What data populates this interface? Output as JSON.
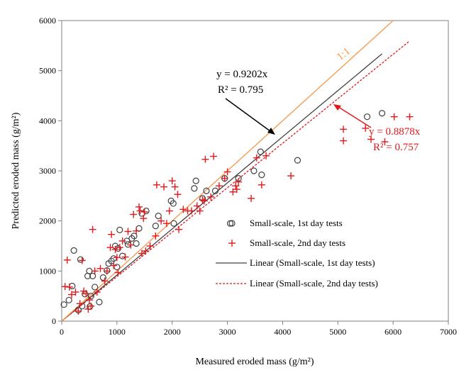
{
  "chart_data": {
    "type": "scatter",
    "title": "",
    "xlabel": "Measured eroded mass (g/m²)",
    "ylabel": "Predicted eroded mass (g/m²)",
    "xlim": [
      0,
      7000
    ],
    "ylim": [
      0,
      6000
    ],
    "x_ticks": [
      "0",
      "1000",
      "2000",
      "3000",
      "4000",
      "5000",
      "6000",
      "7000"
    ],
    "y_ticks": [
      "0",
      "1000",
      "2000",
      "3000",
      "4000",
      "5000",
      "6000"
    ],
    "grid": false,
    "legend_position": "bottom-right",
    "series": [
      {
        "name": "Small-scale, 1st day tests",
        "kind": "scatter",
        "marker": "circle",
        "color": "#404040",
        "points": [
          [
            40,
            330
          ],
          [
            130,
            420
          ],
          [
            190,
            700
          ],
          [
            220,
            1410
          ],
          [
            300,
            220
          ],
          [
            340,
            1230
          ],
          [
            370,
            300
          ],
          [
            420,
            540
          ],
          [
            470,
            900
          ],
          [
            500,
            1000
          ],
          [
            510,
            290
          ],
          [
            530,
            500
          ],
          [
            560,
            900
          ],
          [
            600,
            680
          ],
          [
            680,
            380
          ],
          [
            750,
            870
          ],
          [
            820,
            1010
          ],
          [
            850,
            1150
          ],
          [
            900,
            1200
          ],
          [
            940,
            1250
          ],
          [
            970,
            1500
          ],
          [
            1000,
            1080
          ],
          [
            1020,
            1450
          ],
          [
            1050,
            1820
          ],
          [
            1100,
            1300
          ],
          [
            1180,
            1600
          ],
          [
            1200,
            1530
          ],
          [
            1270,
            1650
          ],
          [
            1310,
            1700
          ],
          [
            1350,
            1550
          ],
          [
            1400,
            1850
          ],
          [
            1450,
            2150
          ],
          [
            1530,
            2200
          ],
          [
            1700,
            1900
          ],
          [
            1750,
            2100
          ],
          [
            1980,
            2400
          ],
          [
            2020,
            2350
          ],
          [
            2030,
            1950
          ],
          [
            2400,
            2650
          ],
          [
            2430,
            2800
          ],
          [
            2550,
            2450
          ],
          [
            2620,
            2600
          ],
          [
            2780,
            2600
          ],
          [
            2950,
            2850
          ],
          [
            3050,
            1950
          ],
          [
            3200,
            2850
          ],
          [
            3480,
            3000
          ],
          [
            3600,
            3380
          ],
          [
            3620,
            2920
          ],
          [
            4270,
            3210
          ],
          [
            5530,
            4080
          ],
          [
            5800,
            4150
          ]
        ]
      },
      {
        "name": "Small-scale, 2nd day tests",
        "kind": "scatter",
        "marker": "plus",
        "color": "#e0191c",
        "points": [
          [
            60,
            690
          ],
          [
            100,
            1220
          ],
          [
            140,
            680
          ],
          [
            180,
            530
          ],
          [
            250,
            580
          ],
          [
            300,
            200
          ],
          [
            330,
            350
          ],
          [
            370,
            1210
          ],
          [
            400,
            600
          ],
          [
            440,
            550
          ],
          [
            480,
            240
          ],
          [
            500,
            420
          ],
          [
            530,
            300
          ],
          [
            560,
            1830
          ],
          [
            600,
            1000
          ],
          [
            640,
            580
          ],
          [
            700,
            1050
          ],
          [
            780,
            800
          ],
          [
            820,
            1000
          ],
          [
            880,
            1470
          ],
          [
            900,
            1730
          ],
          [
            940,
            1110
          ],
          [
            970,
            1430
          ],
          [
            1000,
            1270
          ],
          [
            1020,
            970
          ],
          [
            1050,
            1470
          ],
          [
            1100,
            1600
          ],
          [
            1150,
            1280
          ],
          [
            1200,
            1790
          ],
          [
            1250,
            1520
          ],
          [
            1300,
            2130
          ],
          [
            1350,
            1800
          ],
          [
            1400,
            2280
          ],
          [
            1420,
            2200
          ],
          [
            1450,
            1350
          ],
          [
            1480,
            2050
          ],
          [
            1500,
            2180
          ],
          [
            1520,
            1400
          ],
          [
            1600,
            1500
          ],
          [
            1700,
            1700
          ],
          [
            1720,
            2720
          ],
          [
            1800,
            2000
          ],
          [
            1850,
            2680
          ],
          [
            1900,
            1950
          ],
          [
            1950,
            2200
          ],
          [
            2000,
            2800
          ],
          [
            2050,
            2680
          ],
          [
            2100,
            2530
          ],
          [
            2120,
            1830
          ],
          [
            2200,
            2230
          ],
          [
            2280,
            2200
          ],
          [
            2350,
            2200
          ],
          [
            2450,
            2300
          ],
          [
            2500,
            2200
          ],
          [
            2550,
            2420
          ],
          [
            2580,
            2400
          ],
          [
            2600,
            3230
          ],
          [
            2700,
            2480
          ],
          [
            2750,
            3290
          ],
          [
            2850,
            2700
          ],
          [
            2950,
            2850
          ],
          [
            3000,
            2980
          ],
          [
            3100,
            2580
          ],
          [
            3150,
            2700
          ],
          [
            3170,
            2630
          ],
          [
            3200,
            2780
          ],
          [
            3430,
            2450
          ],
          [
            3530,
            3260
          ],
          [
            3620,
            2720
          ],
          [
            3700,
            3300
          ],
          [
            4150,
            2900
          ],
          [
            5100,
            3600
          ],
          [
            5100,
            3830
          ],
          [
            5500,
            3850
          ],
          [
            5600,
            3630
          ],
          [
            5850,
            3580
          ],
          [
            6020,
            4080
          ],
          [
            6300,
            4080
          ]
        ]
      },
      {
        "name": "Linear (Small-scale, 1st day tests)",
        "kind": "line",
        "style": "solid",
        "color": "#404040",
        "slope": 0.9202,
        "x_range": [
          0,
          5800
        ]
      },
      {
        "name": "Linear (Small-scale, 2nd day tests)",
        "kind": "line",
        "style": "dashed",
        "color": "#e0191c",
        "slope": 0.8878,
        "x_range": [
          0,
          6300
        ]
      },
      {
        "name": "1:1",
        "kind": "line",
        "style": "solid",
        "color": "#f79646",
        "slope": 1.0,
        "x_range": [
          0,
          6000
        ]
      }
    ],
    "annotations": {
      "line1_label": "1:1",
      "eq1": "y = 0.9202x",
      "r2_1": "R² = 0.795",
      "eq2": "y = 0.8878x",
      "r2_2": "R² = 0.757"
    }
  }
}
